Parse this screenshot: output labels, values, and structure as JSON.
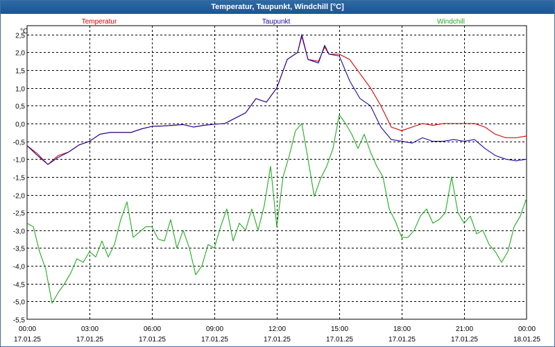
{
  "window": {
    "title": "Temperatur, Taupunkt, Windchill [°C]"
  },
  "chart_data": {
    "type": "line",
    "title": "Temperatur, Taupunkt, Windchill [°C]",
    "ylabel": "°C",
    "xlabel": "",
    "ylim": [
      -5.5,
      2.75
    ],
    "xlim": [
      0,
      24
    ],
    "grid": true,
    "legend_placement": "top",
    "y_ticks": [
      "2,5",
      "2,0",
      "1,5",
      "1,0",
      "0,5",
      "0,0",
      "-0,5",
      "-1,0",
      "-1,5",
      "-2,0",
      "-2,5",
      "-3,0",
      "-3,5",
      "-4,0",
      "-4,5",
      "-5,0",
      "-5,5"
    ],
    "y_tick_values": [
      2.5,
      2.0,
      1.5,
      1.0,
      0.5,
      0.0,
      -0.5,
      -1.0,
      -1.5,
      -2.0,
      -2.5,
      -3.0,
      -3.5,
      -4.0,
      -4.5,
      -5.0,
      -5.5
    ],
    "x_ticks": [
      {
        "x": 0,
        "time": "00:00",
        "date": "17.01.25"
      },
      {
        "x": 3,
        "time": "03:00",
        "date": "17.01.25"
      },
      {
        "x": 6,
        "time": "06:00",
        "date": "17.01.25"
      },
      {
        "x": 9,
        "time": "09:00",
        "date": "17.01.25"
      },
      {
        "x": 12,
        "time": "12:00",
        "date": "17.01.25"
      },
      {
        "x": 15,
        "time": "15:00",
        "date": "17.01.25"
      },
      {
        "x": 18,
        "time": "18:00",
        "date": "17.01.25"
      },
      {
        "x": 21,
        "time": "21:00",
        "date": "17.01.25"
      },
      {
        "x": 24,
        "time": "00:00",
        "date": "18.01.25"
      }
    ],
    "series": [
      {
        "name": "Temperatur",
        "color": "#d40000",
        "points": [
          [
            0,
            -0.62
          ],
          [
            0.5,
            -0.85
          ],
          [
            1.0,
            -1.15
          ],
          [
            1.5,
            -0.9
          ],
          [
            2.0,
            -0.8
          ],
          [
            2.5,
            -0.6
          ],
          [
            3.0,
            -0.5
          ],
          [
            3.5,
            -0.3
          ],
          [
            4.0,
            -0.25
          ],
          [
            4.5,
            -0.25
          ],
          [
            5.0,
            -0.25
          ],
          [
            5.5,
            -0.15
          ],
          [
            6.0,
            -0.08
          ],
          [
            6.5,
            -0.07
          ],
          [
            7.0,
            -0.05
          ],
          [
            7.5,
            -0.03
          ],
          [
            8.0,
            -0.1
          ],
          [
            8.5,
            -0.05
          ],
          [
            9.0,
            -0.02
          ],
          [
            9.5,
            0.0
          ],
          [
            10.0,
            0.15
          ],
          [
            10.5,
            0.3
          ],
          [
            11.0,
            0.7
          ],
          [
            11.5,
            0.6
          ],
          [
            12.0,
            1.0
          ],
          [
            12.5,
            1.8
          ],
          [
            13.0,
            2.0
          ],
          [
            13.2,
            2.45
          ],
          [
            13.5,
            1.8
          ],
          [
            14.0,
            1.75
          ],
          [
            14.3,
            2.15
          ],
          [
            14.5,
            1.95
          ],
          [
            15.0,
            1.95
          ],
          [
            15.5,
            1.8
          ],
          [
            16.0,
            1.4
          ],
          [
            16.5,
            1.0
          ],
          [
            17.0,
            0.5
          ],
          [
            17.5,
            -0.1
          ],
          [
            18.0,
            -0.2
          ],
          [
            18.5,
            -0.1
          ],
          [
            19.0,
            0.0
          ],
          [
            19.5,
            -0.05
          ],
          [
            20.0,
            0.0
          ],
          [
            20.5,
            0.0
          ],
          [
            21.0,
            0.0
          ],
          [
            21.5,
            0.0
          ],
          [
            22.0,
            -0.1
          ],
          [
            22.5,
            -0.3
          ],
          [
            23.0,
            -0.4
          ],
          [
            23.5,
            -0.4
          ],
          [
            24.0,
            -0.35
          ]
        ]
      },
      {
        "name": "Taupunkt",
        "color": "#1a0aa0",
        "points": [
          [
            0,
            -0.62
          ],
          [
            0.5,
            -0.9
          ],
          [
            1.0,
            -1.15
          ],
          [
            1.5,
            -0.95
          ],
          [
            2.0,
            -0.8
          ],
          [
            2.5,
            -0.6
          ],
          [
            3.0,
            -0.5
          ],
          [
            3.5,
            -0.3
          ],
          [
            4.0,
            -0.25
          ],
          [
            4.5,
            -0.25
          ],
          [
            5.0,
            -0.25
          ],
          [
            5.5,
            -0.15
          ],
          [
            6.0,
            -0.08
          ],
          [
            6.5,
            -0.07
          ],
          [
            7.0,
            -0.05
          ],
          [
            7.5,
            -0.03
          ],
          [
            8.0,
            -0.1
          ],
          [
            8.5,
            -0.05
          ],
          [
            9.0,
            -0.02
          ],
          [
            9.5,
            0.0
          ],
          [
            10.0,
            0.15
          ],
          [
            10.5,
            0.3
          ],
          [
            11.0,
            0.7
          ],
          [
            11.5,
            0.6
          ],
          [
            12.0,
            1.0
          ],
          [
            12.5,
            1.8
          ],
          [
            13.0,
            2.0
          ],
          [
            13.2,
            2.5
          ],
          [
            13.5,
            1.8
          ],
          [
            14.0,
            1.7
          ],
          [
            14.3,
            2.2
          ],
          [
            14.5,
            1.95
          ],
          [
            15.0,
            1.9
          ],
          [
            15.5,
            1.2
          ],
          [
            16.0,
            0.7
          ],
          [
            16.5,
            0.5
          ],
          [
            17.0,
            -0.1
          ],
          [
            17.5,
            -0.45
          ],
          [
            18.0,
            -0.5
          ],
          [
            18.5,
            -0.55
          ],
          [
            19.0,
            -0.4
          ],
          [
            19.5,
            -0.5
          ],
          [
            20.0,
            -0.5
          ],
          [
            20.5,
            -0.45
          ],
          [
            21.0,
            -0.5
          ],
          [
            21.5,
            -0.45
          ],
          [
            22.0,
            -0.7
          ],
          [
            22.5,
            -0.9
          ],
          [
            23.0,
            -1.0
          ],
          [
            23.5,
            -1.05
          ],
          [
            24.0,
            -1.0
          ]
        ]
      },
      {
        "name": "Windchill",
        "color": "#22aa22",
        "points": [
          [
            0,
            -2.8
          ],
          [
            0.3,
            -2.9
          ],
          [
            0.6,
            -3.6
          ],
          [
            0.9,
            -4.1
          ],
          [
            1.2,
            -5.05
          ],
          [
            1.5,
            -4.75
          ],
          [
            1.8,
            -4.5
          ],
          [
            2.1,
            -4.2
          ],
          [
            2.4,
            -3.8
          ],
          [
            2.7,
            -3.9
          ],
          [
            3.0,
            -3.6
          ],
          [
            3.3,
            -3.75
          ],
          [
            3.6,
            -3.3
          ],
          [
            3.9,
            -3.75
          ],
          [
            4.2,
            -3.4
          ],
          [
            4.5,
            -2.7
          ],
          [
            4.8,
            -2.2
          ],
          [
            5.1,
            -3.2
          ],
          [
            5.4,
            -3.05
          ],
          [
            5.7,
            -2.9
          ],
          [
            6.0,
            -2.9
          ],
          [
            6.3,
            -3.25
          ],
          [
            6.6,
            -3.3
          ],
          [
            6.9,
            -2.7
          ],
          [
            7.2,
            -3.5
          ],
          [
            7.5,
            -3.0
          ],
          [
            7.8,
            -3.5
          ],
          [
            8.1,
            -4.25
          ],
          [
            8.4,
            -4.0
          ],
          [
            8.7,
            -3.4
          ],
          [
            9.0,
            -3.5
          ],
          [
            9.3,
            -2.9
          ],
          [
            9.6,
            -2.4
          ],
          [
            9.9,
            -3.3
          ],
          [
            10.2,
            -2.8
          ],
          [
            10.5,
            -3.0
          ],
          [
            10.8,
            -2.4
          ],
          [
            11.1,
            -3.0
          ],
          [
            11.4,
            -2.3
          ],
          [
            11.7,
            -1.2
          ],
          [
            12.0,
            -2.9
          ],
          [
            12.3,
            -1.5
          ],
          [
            12.6,
            -0.9
          ],
          [
            12.9,
            -0.2
          ],
          [
            13.2,
            0.0
          ],
          [
            13.5,
            -1.0
          ],
          [
            13.8,
            -2.05
          ],
          [
            14.1,
            -1.55
          ],
          [
            14.4,
            -1.2
          ],
          [
            14.7,
            -0.7
          ],
          [
            15.0,
            0.25
          ],
          [
            15.3,
            0.0
          ],
          [
            15.6,
            -0.3
          ],
          [
            15.9,
            -0.7
          ],
          [
            16.2,
            -0.3
          ],
          [
            16.5,
            -0.8
          ],
          [
            16.8,
            -1.2
          ],
          [
            17.1,
            -1.5
          ],
          [
            17.4,
            -2.4
          ],
          [
            17.7,
            -2.75
          ],
          [
            18.0,
            -3.2
          ],
          [
            18.3,
            -3.2
          ],
          [
            18.6,
            -3.0
          ],
          [
            18.9,
            -2.6
          ],
          [
            19.2,
            -2.4
          ],
          [
            19.5,
            -2.8
          ],
          [
            19.8,
            -2.7
          ],
          [
            20.1,
            -2.5
          ],
          [
            20.4,
            -1.5
          ],
          [
            20.7,
            -2.5
          ],
          [
            21.0,
            -2.8
          ],
          [
            21.3,
            -2.6
          ],
          [
            21.6,
            -3.1
          ],
          [
            21.9,
            -3.0
          ],
          [
            22.2,
            -3.4
          ],
          [
            22.5,
            -3.6
          ],
          [
            22.8,
            -3.9
          ],
          [
            23.1,
            -3.6
          ],
          [
            23.4,
            -2.9
          ],
          [
            23.7,
            -2.6
          ],
          [
            24.0,
            -2.1
          ]
        ]
      }
    ]
  }
}
